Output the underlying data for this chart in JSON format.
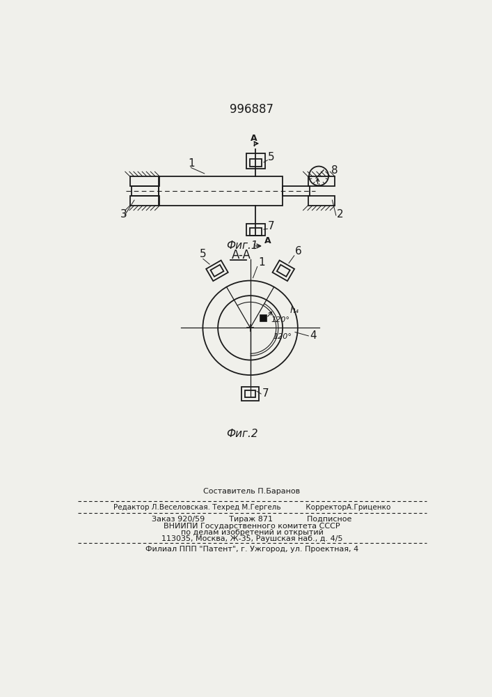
{
  "patent_number": "996887",
  "bg_color": "#f0f0eb",
  "lc": "#1a1a1a",
  "fig1_label": "Фиг.1",
  "fig2_label": "Фиг.2",
  "aa_label": "A-A",
  "footer_line1": "Составитель П.Баранов",
  "footer_line2": "Редактор Л.Веселовская. Техред М.Гергель           КорректорА.Гриценко",
  "footer_line3": "Заказ 920/59          Тираж 871              Подписное",
  "footer_line4": "ВНИИПИ Государственного комитета СССР",
  "footer_line5": "по делам изобретений и открытий",
  "footer_line6": "113035, Москва, Ж-35, Раушская наб., д. 4/5",
  "footer_line7": "Филиал ППП \"Патент\", г. Ужгород, ул. Проектная, 4"
}
